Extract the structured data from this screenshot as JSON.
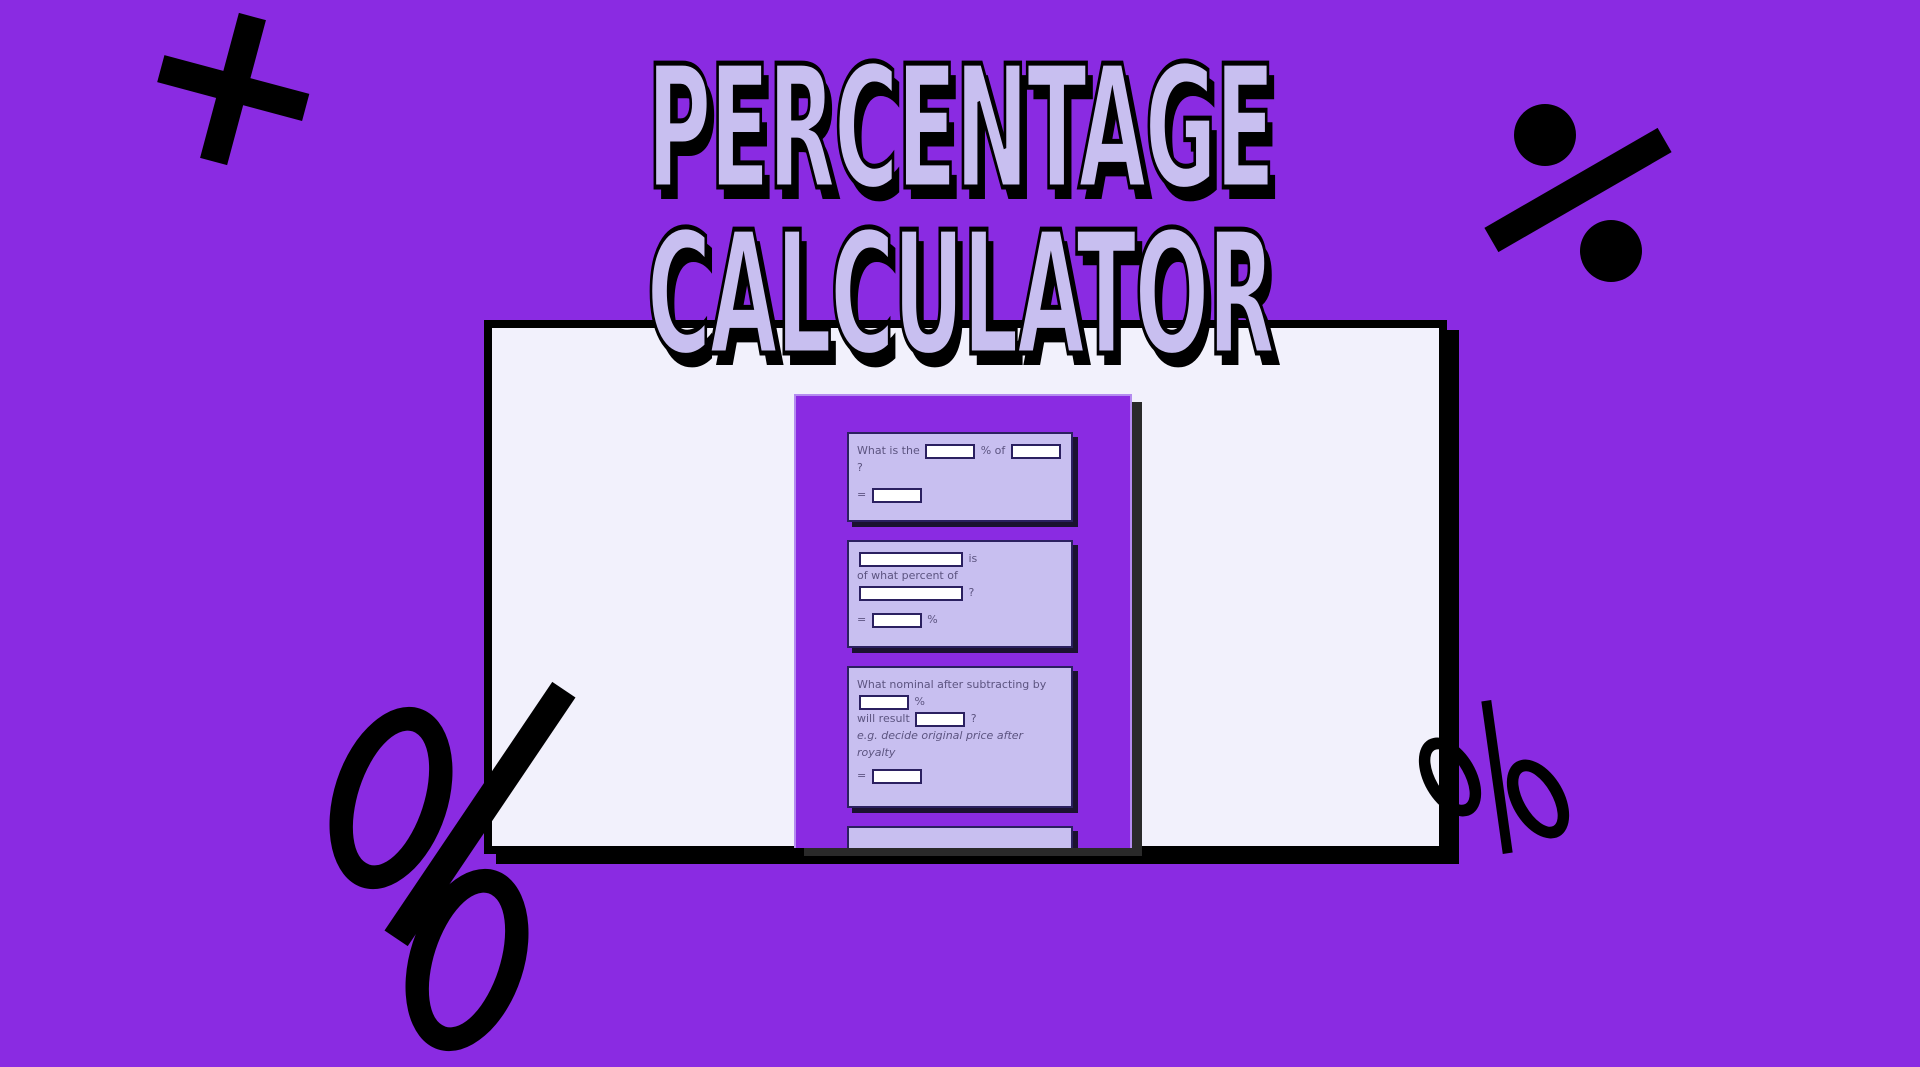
{
  "title": {
    "line1": "PERCENTAGE",
    "line2": "CALCULATOR"
  },
  "calculator": {
    "card1": {
      "prefix": "What is the",
      "mid": "% of",
      "suffix": "?",
      "result_prefix": "="
    },
    "card2": {
      "after_first": "is",
      "line2": "of what percent of",
      "suffix": "?",
      "result_prefix": "=",
      "result_suffix": "%"
    },
    "card3": {
      "line1": "What nominal after subtracting by",
      "pct": "%",
      "line3": "will result",
      "suffix": "?",
      "example": "e.g. decide original price after royalty",
      "result_prefix": "="
    }
  },
  "colors": {
    "background": "#8a2be2",
    "card": "#c8bff0",
    "window": "#f2f1fc"
  },
  "icons": [
    "plus-icon",
    "percent-icon"
  ]
}
